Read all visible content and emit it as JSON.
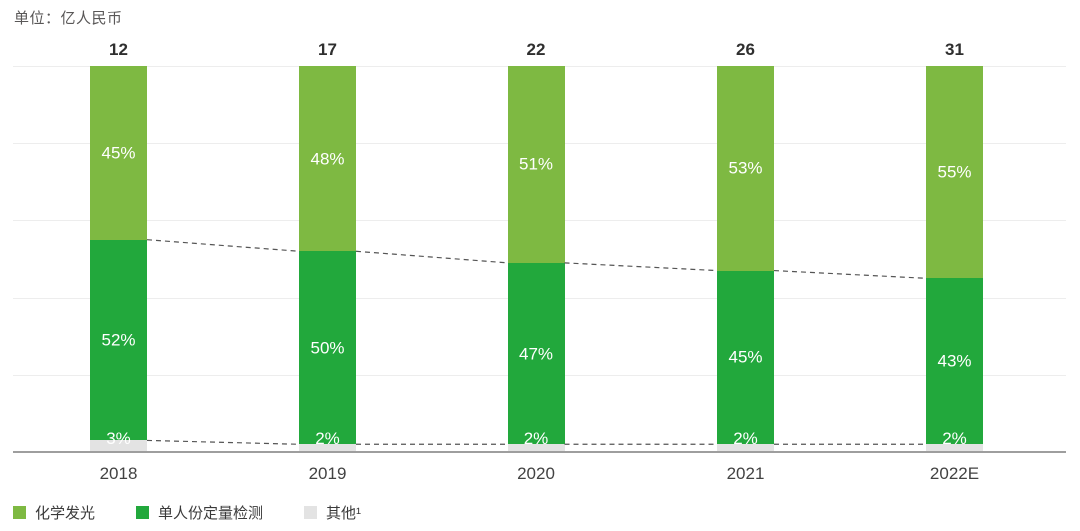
{
  "title": "单位：亿人民币",
  "chart_data": {
    "type": "bar",
    "stacked": true,
    "title": "单位：亿人民币",
    "categories": [
      "2018",
      "2019",
      "2020",
      "2021",
      "2022E"
    ],
    "totals": [
      "12",
      "17",
      "22",
      "26",
      "31"
    ],
    "series": [
      {
        "name": "化学发光",
        "color": "#7EB942",
        "values": [
          45,
          48,
          51,
          53,
          55
        ]
      },
      {
        "name": "单人份定量检测",
        "color": "#22A83C",
        "values": [
          52,
          50,
          47,
          45,
          43
        ]
      },
      {
        "name": "其他¹",
        "color": "#E3E3E3",
        "values": [
          3,
          2,
          2,
          2,
          2
        ]
      }
    ],
    "value_suffix": "%",
    "ylim": [
      0,
      100
    ],
    "grid": true,
    "legend_position": "bottom-left",
    "annotations": "dashed connector lines between stacked segment boundaries of adjacent bars",
    "colors": {
      "gridline": "#EDEDED",
      "axis": "#9E9E9E",
      "dashed_line": "#555555",
      "segment_label_text": "#FFFFFF",
      "total_text": "#2F2F2F"
    }
  }
}
